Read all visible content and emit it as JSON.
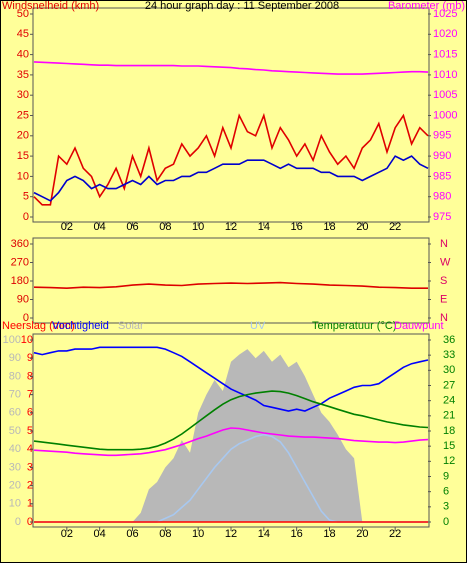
{
  "chart_data": [
    {
      "type": "line",
      "title": "24 hour graph day : 11 September 2008",
      "ylabel": "Windsnelheid (kmh)",
      "y2label": "Barometer (mb)",
      "xlim": [
        0,
        24
      ],
      "xticks": [
        {
          "value": 2,
          "label": "02"
        },
        {
          "value": 4,
          "label": "04"
        },
        {
          "value": 6,
          "label": "06"
        },
        {
          "value": 8,
          "label": "08"
        },
        10,
        12,
        14,
        16,
        18,
        20,
        22
      ],
      "ylim": [
        0,
        50
      ],
      "yticks": [
        0,
        5,
        10,
        15,
        20,
        25,
        30,
        35,
        40,
        45,
        50
      ],
      "y2lim": [
        975,
        1025
      ],
      "y2ticks": [
        975,
        980,
        985,
        990,
        995,
        1000,
        1005,
        1010,
        1015,
        1020,
        1025
      ],
      "x": [
        0,
        0.5,
        1,
        1.5,
        2,
        2.5,
        3,
        3.5,
        4,
        4.5,
        5,
        5.5,
        6,
        6.5,
        7,
        7.5,
        8,
        8.5,
        9,
        9.5,
        10,
        10.5,
        11,
        11.5,
        12,
        12.5,
        13,
        13.5,
        14,
        14.5,
        15,
        15.5,
        16,
        16.5,
        17,
        17.5,
        18,
        18.5,
        19,
        19.5,
        20,
        20.5,
        21,
        21.5,
        22,
        22.5,
        23,
        23.5,
        24
      ],
      "series": [
        {
          "color": "#e00000",
          "values": [
            5,
            3,
            3,
            15,
            13,
            17,
            12,
            10,
            5,
            8,
            12,
            7,
            15,
            10,
            17,
            9,
            12,
            13,
            18,
            15,
            17,
            20,
            15,
            22,
            17,
            25,
            21,
            20,
            25,
            17,
            22,
            19,
            15,
            18,
            14,
            20,
            16,
            13,
            15,
            12,
            17,
            19,
            23,
            16,
            22,
            25,
            18,
            22,
            20
          ]
        },
        {
          "color": "#0000cc",
          "values": [
            6,
            5,
            4,
            6,
            9,
            10,
            9,
            7,
            8,
            7,
            7,
            8,
            9,
            8,
            10,
            8,
            9,
            9,
            10,
            10,
            11,
            11,
            12,
            13,
            13,
            13,
            14,
            14,
            14,
            13,
            12,
            13,
            12,
            12,
            12,
            11,
            11,
            10,
            10,
            10,
            9,
            10,
            11,
            12,
            15,
            14,
            15,
            13,
            12
          ]
        },
        {
          "color": "#ff00ff",
          "axis": "y2",
          "values": [
            1013.2,
            1013.1,
            1013.0,
            1012.9,
            1012.8,
            1012.7,
            1012.6,
            1012.5,
            1012.4,
            1012.4,
            1012.3,
            1012.3,
            1012.3,
            1012.3,
            1012.3,
            1012.3,
            1012.3,
            1012.3,
            1012.2,
            1012.2,
            1012.2,
            1012.1,
            1012.0,
            1011.9,
            1011.8,
            1011.6,
            1011.5,
            1011.3,
            1011.2,
            1011.0,
            1010.9,
            1010.8,
            1010.7,
            1010.6,
            1010.5,
            1010.4,
            1010.3,
            1010.2,
            1010.2,
            1010.2,
            1010.2,
            1010.3,
            1010.4,
            1010.5,
            1010.6,
            1010.7,
            1010.8,
            1010.8,
            1010.7
          ]
        }
      ]
    },
    {
      "type": "line",
      "xlim": [
        0,
        24
      ],
      "ylim": [
        0,
        360
      ],
      "yticks": [
        0,
        90,
        180,
        270,
        360
      ],
      "y2lim": [
        0,
        360
      ],
      "y2ticks": [
        {
          "value": 0,
          "label": "N"
        },
        {
          "value": 90,
          "label": "E"
        },
        {
          "value": 180,
          "label": "S"
        },
        {
          "value": 270,
          "label": "W"
        },
        {
          "value": 360,
          "label": "N"
        }
      ],
      "x": [
        0,
        1,
        2,
        3,
        4,
        5,
        6,
        7,
        8,
        9,
        10,
        11,
        12,
        13,
        14,
        15,
        16,
        17,
        18,
        19,
        20,
        21,
        22,
        23,
        24
      ],
      "series": [
        {
          "color": "#dd0000",
          "values": [
            150,
            148,
            145,
            150,
            148,
            152,
            160,
            165,
            160,
            158,
            165,
            168,
            170,
            168,
            170,
            172,
            168,
            165,
            160,
            158,
            155,
            150,
            148,
            145,
            145
          ]
        }
      ]
    },
    {
      "type": "line",
      "xlim": [
        0,
        24
      ],
      "xticks": [
        {
          "value": 2,
          "label": "02"
        },
        {
          "value": 4,
          "label": "04"
        },
        {
          "value": 6,
          "label": "06"
        },
        {
          "value": 8,
          "label": "08"
        },
        10,
        12,
        14,
        16,
        18,
        20,
        22
      ],
      "ylim": [
        0,
        100
      ],
      "yticks": [
        0,
        10,
        20,
        30,
        40,
        50,
        60,
        70,
        80,
        90,
        100
      ],
      "y3lim": [
        0,
        10
      ],
      "y3ticks": [
        0,
        1,
        2,
        3,
        4,
        5,
        6,
        7,
        8,
        9,
        10
      ],
      "y2lim": [
        0,
        36
      ],
      "y2ticks": [
        0,
        3,
        6,
        9,
        12,
        15,
        18,
        21,
        24,
        27,
        30,
        33,
        36
      ],
      "x": [
        0,
        0.5,
        1,
        1.5,
        2,
        2.5,
        3,
        3.5,
        4,
        4.5,
        5,
        5.5,
        6,
        6.5,
        7,
        7.5,
        8,
        8.5,
        9,
        9.5,
        10,
        10.5,
        11,
        11.5,
        12,
        12.5,
        13,
        13.5,
        14,
        14.5,
        15,
        15.5,
        16,
        16.5,
        17,
        17.5,
        18,
        18.5,
        19,
        19.5,
        20,
        20.5,
        21,
        21.5,
        22,
        22.5,
        23,
        23.5,
        24
      ],
      "series": [
        {
          "name": "Solar",
          "color": "#b8b8b8",
          "style": "area",
          "values": [
            0,
            0,
            0,
            0,
            0,
            0,
            0,
            0,
            0,
            0,
            0,
            0,
            0,
            5,
            18,
            22,
            30,
            35,
            45,
            38,
            60,
            70,
            78,
            72,
            88,
            92,
            95,
            90,
            94,
            88,
            92,
            85,
            88,
            80,
            70,
            60,
            55,
            48,
            40,
            35,
            0,
            0,
            0,
            0,
            0,
            0,
            0,
            0,
            0
          ]
        },
        {
          "name": "UV",
          "color": "#a8c8f0",
          "values": [
            0,
            0,
            0,
            0,
            0,
            0,
            0,
            0,
            0,
            0,
            0,
            0,
            0,
            0,
            0,
            0,
            2,
            4,
            8,
            12,
            18,
            24,
            30,
            35,
            40,
            43,
            45,
            47,
            48,
            47,
            44,
            38,
            30,
            22,
            14,
            6,
            1,
            0,
            0,
            0,
            0,
            0,
            0,
            0,
            0,
            0,
            0,
            0,
            0
          ]
        },
        {
          "name": "Neerslag (mm)",
          "color": "#ff0000",
          "axis": "y3",
          "x": [
            0,
            24
          ],
          "values": [
            0,
            0
          ]
        },
        {
          "name": "Vochtigheid",
          "color": "#0000ff",
          "values": [
            93,
            92,
            93,
            94,
            94,
            95,
            95,
            95,
            96,
            96,
            96,
            96,
            96,
            96,
            96,
            96,
            95,
            93,
            91,
            88,
            85,
            82,
            79,
            76,
            73,
            71,
            69,
            67,
            64,
            63,
            62,
            61,
            62,
            61,
            63,
            65,
            68,
            70,
            72,
            74,
            75,
            75,
            76,
            79,
            82,
            85,
            87,
            88,
            89
          ]
        },
        {
          "name": "Temperatuur (°C)",
          "color": "#008000",
          "axis": "y2",
          "values": [
            16,
            15.8,
            15.6,
            15.4,
            15.2,
            15,
            14.8,
            14.6,
            14.4,
            14.3,
            14.3,
            14.3,
            14.3,
            14.4,
            14.6,
            15,
            15.6,
            16.4,
            17.4,
            18.6,
            19.8,
            21,
            22.2,
            23.3,
            24.2,
            24.8,
            25.2,
            25.5,
            25.7,
            25.9,
            25.8,
            25.5,
            25,
            24.4,
            23.8,
            23.3,
            22.8,
            22.3,
            21.8,
            21.3,
            21,
            20.6,
            20.2,
            19.8,
            19.5,
            19.2,
            19,
            18.8,
            18.7
          ]
        },
        {
          "name": "Dauwpunt",
          "color": "#ff00ff",
          "axis": "y2",
          "values": [
            14.2,
            14.1,
            14,
            13.9,
            13.8,
            13.6,
            13.5,
            13.4,
            13.3,
            13.2,
            13.2,
            13.3,
            13.4,
            13.5,
            13.7,
            14,
            14.3,
            14.8,
            15.3,
            15.9,
            16.5,
            17,
            17.6,
            18.2,
            18.6,
            18.5,
            18.2,
            17.9,
            17.6,
            17.4,
            17.2,
            17,
            16.9,
            16.8,
            16.8,
            16.7,
            16.6,
            16.5,
            16.3,
            16.1,
            16,
            15.9,
            15.8,
            15.8,
            15.7,
            15.8,
            16,
            16.2,
            16.3
          ]
        }
      ]
    }
  ]
}
